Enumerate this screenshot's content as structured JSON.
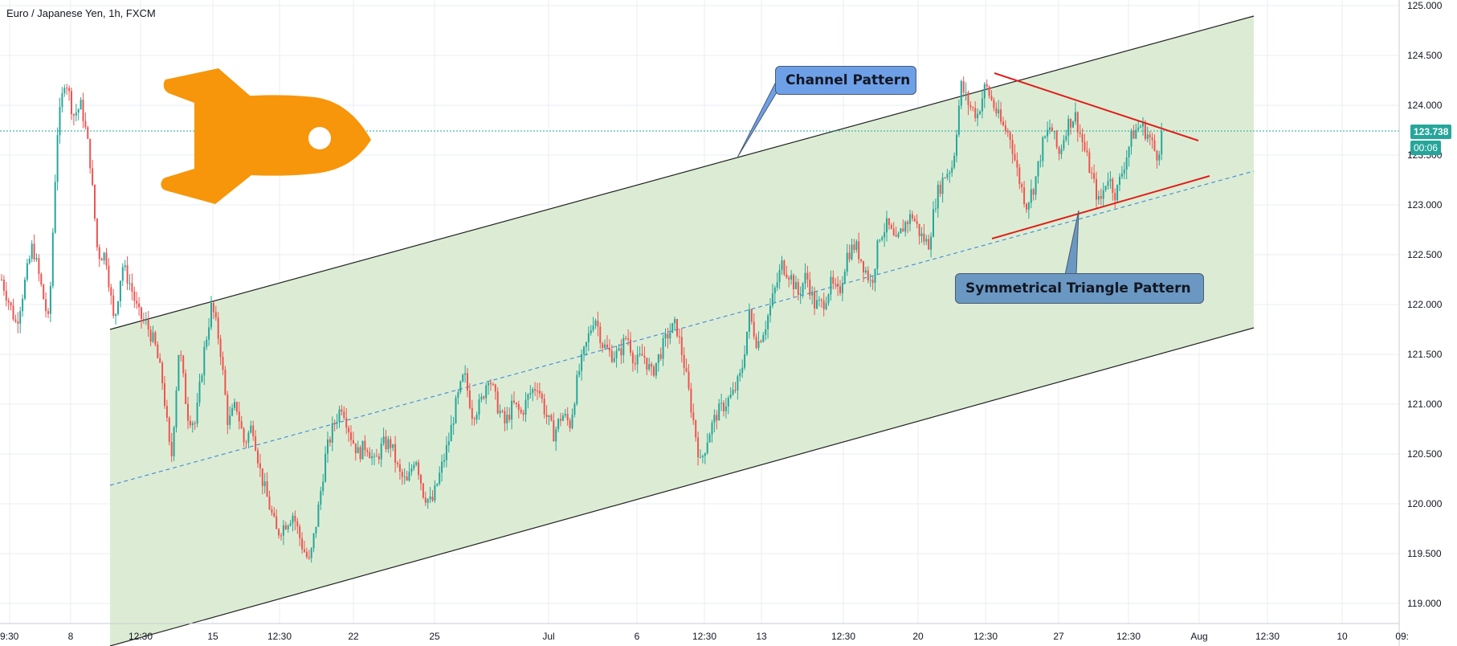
{
  "symbol": {
    "title": "Euro / Japanese Yen, 1h, FXCM"
  },
  "current": {
    "price": "123.738",
    "countdown": "00:06"
  },
  "annotations": {
    "channel_label": "Channel Pattern",
    "triangle_label": "Symmetrical Triangle Pattern"
  },
  "colors": {
    "up": "#26a69a",
    "down": "#ef5350",
    "channel_fill": "#dcecd4",
    "channel_line": "#222222",
    "midline": "#4a90d9",
    "triangle_line": "#e0201b",
    "rocket": "#f7960b",
    "price_line": "#26a69a",
    "grid": "#e9eef2"
  },
  "icons": {
    "rocket": "rocket-icon"
  },
  "chart_data": {
    "type": "candlestick",
    "x_ticks": [
      "9:30",
      "8",
      "12:30",
      "15",
      "12:30",
      "22",
      "25",
      "Jul",
      "6",
      "12:30",
      "13",
      "12:30",
      "20",
      "12:30",
      "27",
      "12:30",
      "Aug",
      "12:30",
      "10",
      "09:"
    ],
    "y_ticks": [
      119.0,
      119.5,
      120.0,
      120.5,
      121.0,
      121.5,
      122.0,
      122.5,
      123.0,
      123.5,
      124.0,
      124.5,
      125.0
    ],
    "y_tick_labels": [
      "119.000",
      "119.500",
      "120.000",
      "120.500",
      "121.000",
      "121.500",
      "122.000",
      "122.500",
      "123.000",
      "123.500",
      "124.000",
      "124.500",
      "125.000"
    ],
    "ylim": [
      118.83,
      125.05
    ],
    "last_price": 123.738,
    "path": [
      [
        0,
        122.3
      ],
      [
        2,
        121.8
      ],
      [
        4,
        122.6
      ],
      [
        6,
        121.8
      ],
      [
        7,
        123.7
      ],
      [
        8,
        124.3
      ],
      [
        9,
        123.9
      ],
      [
        10,
        124.0
      ],
      [
        11,
        123.5
      ],
      [
        12,
        122.5
      ],
      [
        13,
        122.5
      ],
      [
        14,
        121.8
      ],
      [
        15,
        122.4
      ],
      [
        16,
        122.2
      ],
      [
        17,
        121.9
      ],
      [
        18,
        121.8
      ],
      [
        19,
        121.6
      ],
      [
        20,
        121.2
      ],
      [
        21,
        120.4
      ],
      [
        22,
        121.6
      ],
      [
        23,
        120.9
      ],
      [
        24,
        120.8
      ],
      [
        25,
        121.5
      ],
      [
        26,
        122.0
      ],
      [
        27,
        121.6
      ],
      [
        28,
        120.8
      ],
      [
        29,
        121.0
      ],
      [
        30,
        120.6
      ],
      [
        31,
        120.8
      ],
      [
        32,
        120.3
      ],
      [
        33,
        120.0
      ],
      [
        34,
        119.7
      ],
      [
        35,
        119.8
      ],
      [
        36,
        119.9
      ],
      [
        37,
        119.6
      ],
      [
        38,
        119.4
      ],
      [
        39,
        119.9
      ],
      [
        40,
        120.5
      ],
      [
        41,
        120.8
      ],
      [
        42,
        121.0
      ],
      [
        43,
        120.7
      ],
      [
        44,
        120.5
      ],
      [
        45,
        120.6
      ],
      [
        46,
        120.4
      ],
      [
        47,
        120.6
      ],
      [
        48,
        120.6
      ],
      [
        49,
        120.3
      ],
      [
        50,
        120.2
      ],
      [
        51,
        120.5
      ],
      [
        52,
        120.1
      ],
      [
        53,
        120.0
      ],
      [
        54,
        120.3
      ],
      [
        55,
        120.6
      ],
      [
        56,
        121.0
      ],
      [
        57,
        121.3
      ],
      [
        58,
        120.9
      ],
      [
        59,
        121.0
      ],
      [
        60,
        121.3
      ],
      [
        61,
        121.0
      ],
      [
        62,
        120.8
      ],
      [
        63,
        121.0
      ],
      [
        64,
        120.9
      ],
      [
        65,
        121.1
      ],
      [
        66,
        121.2
      ],
      [
        67,
        120.9
      ],
      [
        68,
        120.7
      ],
      [
        69,
        120.9
      ],
      [
        70,
        120.8
      ],
      [
        71,
        121.3
      ],
      [
        72,
        121.6
      ],
      [
        73,
        121.9
      ],
      [
        74,
        121.6
      ],
      [
        75,
        121.5
      ],
      [
        76,
        121.5
      ],
      [
        77,
        121.7
      ],
      [
        78,
        121.4
      ],
      [
        79,
        121.5
      ],
      [
        80,
        121.3
      ],
      [
        81,
        121.5
      ],
      [
        82,
        121.7
      ],
      [
        83,
        121.8
      ],
      [
        84,
        121.4
      ],
      [
        85,
        120.9
      ],
      [
        86,
        120.4
      ],
      [
        87,
        120.7
      ],
      [
        88,
        120.9
      ],
      [
        89,
        121.0
      ],
      [
        90,
        121.1
      ],
      [
        91,
        121.3
      ],
      [
        92,
        121.9
      ],
      [
        93,
        121.6
      ],
      [
        94,
        121.8
      ],
      [
        95,
        122.1
      ],
      [
        96,
        122.4
      ],
      [
        97,
        122.3
      ],
      [
        98,
        122.1
      ],
      [
        99,
        122.3
      ],
      [
        100,
        122.0
      ],
      [
        101,
        122.0
      ],
      [
        102,
        122.2
      ],
      [
        103,
        122.1
      ],
      [
        104,
        122.5
      ],
      [
        105,
        122.6
      ],
      [
        106,
        122.4
      ],
      [
        107,
        122.2
      ],
      [
        108,
        122.7
      ],
      [
        109,
        122.8
      ],
      [
        110,
        122.6
      ],
      [
        111,
        122.8
      ],
      [
        112,
        122.9
      ],
      [
        113,
        122.7
      ],
      [
        114,
        122.6
      ],
      [
        115,
        123.1
      ],
      [
        116,
        123.3
      ],
      [
        117,
        123.4
      ],
      [
        118,
        124.2
      ],
      [
        119,
        124.0
      ],
      [
        120,
        123.9
      ],
      [
        121,
        124.2
      ],
      [
        122,
        124.0
      ],
      [
        123,
        123.8
      ],
      [
        124,
        123.7
      ],
      [
        125,
        123.3
      ],
      [
        126,
        123.0
      ],
      [
        127,
        123.2
      ],
      [
        128,
        123.6
      ],
      [
        129,
        123.8
      ],
      [
        130,
        123.5
      ],
      [
        131,
        123.8
      ],
      [
        132,
        123.9
      ],
      [
        133,
        123.6
      ],
      [
        134,
        123.3
      ],
      [
        135,
        123.0
      ],
      [
        136,
        123.3
      ],
      [
        137,
        123.1
      ],
      [
        138,
        123.4
      ],
      [
        139,
        123.7
      ],
      [
        140,
        123.8
      ],
      [
        141,
        123.7
      ],
      [
        142,
        123.5
      ],
      [
        143,
        123.74
      ]
    ]
  }
}
